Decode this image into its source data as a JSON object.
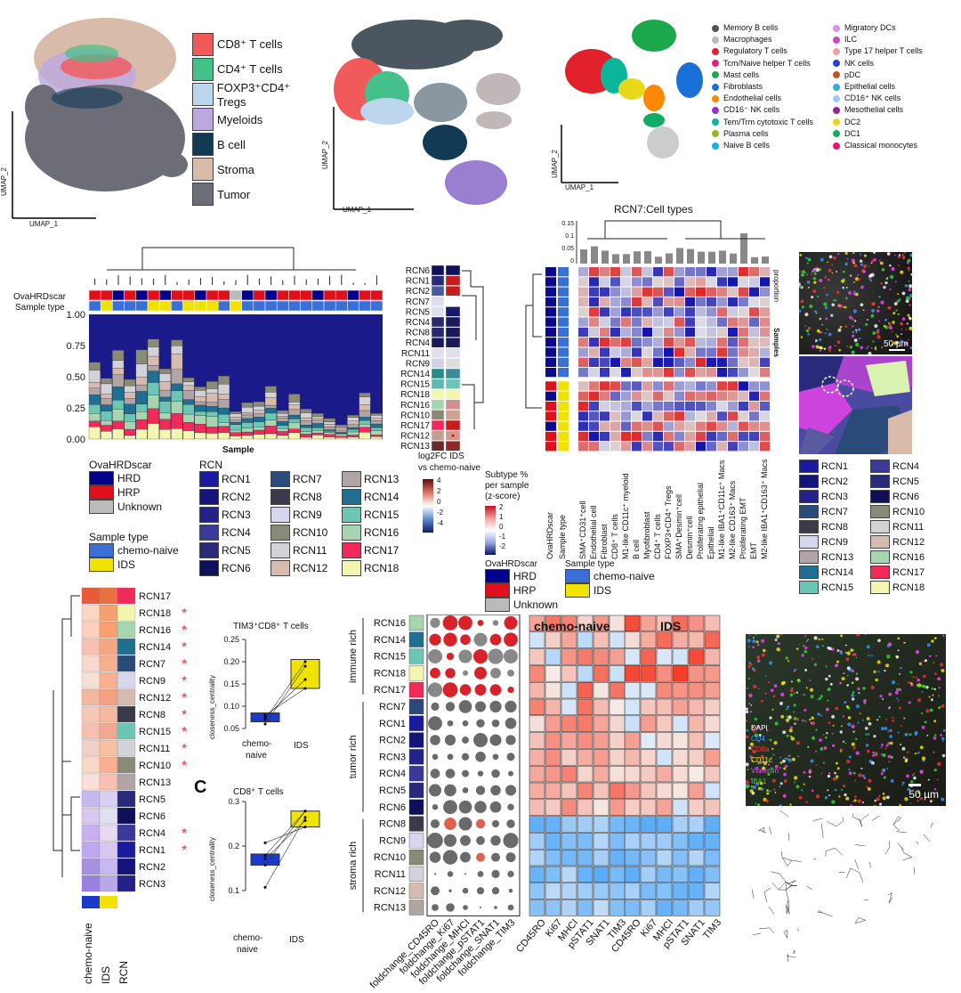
{
  "umap": {
    "ylabel": "UMAP_2",
    "xlabel": "UMAP_1"
  },
  "celltype_legend": [
    {
      "label": "CD8⁺ T cells",
      "color": "#f05a5a"
    },
    {
      "label": "CD4⁺ T cells",
      "color": "#44c08a"
    },
    {
      "label": "FOXP3⁺CD4⁺ Tregs",
      "color": "#bcd6ee"
    },
    {
      "label": "Myeloids",
      "color": "#b9a9e0"
    },
    {
      "label": "B cell",
      "color": "#123a55"
    },
    {
      "label": "Stroma",
      "color": "#d9bba9"
    },
    {
      "label": "Tumor",
      "color": "#6d6d78"
    }
  ],
  "fine_legend_col1": [
    {
      "label": "Memory B cells",
      "color": "#555555"
    },
    {
      "label": "Macrophages",
      "color": "#bbbbbb"
    },
    {
      "label": "Regulatory T cells",
      "color": "#e0202a"
    },
    {
      "label": "Tcm/Naive helper T cells",
      "color": "#e8207a"
    },
    {
      "label": "Mast cells",
      "color": "#1aa84a"
    },
    {
      "label": "Fibroblasts",
      "color": "#1b6fd8"
    },
    {
      "label": "Endothelial cells",
      "color": "#ff8800"
    },
    {
      "label": "CD16⁻ NK cells",
      "color": "#9932cc"
    },
    {
      "label": "Tem/Trm cytotoxic T cells",
      "color": "#0bb59a"
    },
    {
      "label": "Plasma cells",
      "color": "#9ab520"
    },
    {
      "label": "Naive B cells",
      "color": "#1ab0ee"
    }
  ],
  "fine_legend_col2": [
    {
      "label": "Migratory DCs",
      "color": "#d890e8"
    },
    {
      "label": "ILC",
      "color": "#cc44cc"
    },
    {
      "label": "Type 17 helper T cells",
      "color": "#f2a0a0"
    },
    {
      "label": "NK cells",
      "color": "#2244cc"
    },
    {
      "label": "pDC",
      "color": "#b85a1a"
    },
    {
      "label": "Epithelial cells",
      "color": "#33aadd"
    },
    {
      "label": "CD16⁺ NK cells",
      "color": "#a0c8f0"
    },
    {
      "label": "Mesothelial cells",
      "color": "#992288"
    },
    {
      "label": "DC2",
      "color": "#e8d81a"
    },
    {
      "label": "DC1",
      "color": "#11aa66"
    },
    {
      "label": "Classical monocytes",
      "color": "#ee1177"
    }
  ],
  "panel_b": {
    "row1_label": "OvaHRDscar",
    "row2_label": "Sample type",
    "x_label": "Sample",
    "yticks": [
      "1.00",
      "0.75",
      "0.50",
      "0.25",
      "0.00"
    ]
  },
  "ovahrd_legend": {
    "title": "OvaHRDscar",
    "items": [
      {
        "label": "HRD",
        "color": "#00008b"
      },
      {
        "label": "HRP",
        "color": "#e0101a"
      },
      {
        "label": "Unknown",
        "color": "#bbbbbb"
      }
    ]
  },
  "sampletype_legend": {
    "title": "Sample type",
    "items": [
      {
        "label": "chemo-naive",
        "color": "#3a6fd8"
      },
      {
        "label": "IDS",
        "color": "#f2e200"
      }
    ]
  },
  "rcn_legend_title": "RCN",
  "rcn_colors": [
    {
      "label": "RCN1",
      "color": "#1a1aa0"
    },
    {
      "label": "RCN2",
      "color": "#14147a"
    },
    {
      "label": "RCN3",
      "color": "#22228a"
    },
    {
      "label": "RCN4",
      "color": "#3a3a9a"
    },
    {
      "label": "RCN5",
      "color": "#2a2a7a"
    },
    {
      "label": "RCN6",
      "color": "#10105a"
    },
    {
      "label": "RCN7",
      "color": "#2a4a7a"
    },
    {
      "label": "RCN8",
      "color": "#3a3a4a"
    },
    {
      "label": "RCN9",
      "color": "#d6d6ee"
    },
    {
      "label": "RCN10",
      "color": "#8a8a78"
    },
    {
      "label": "RCN11",
      "color": "#d2d2d8"
    },
    {
      "label": "RCN12",
      "color": "#d6bcb0"
    },
    {
      "label": "RCN13",
      "color": "#b0a4a4"
    },
    {
      "label": "RCN14",
      "color": "#1e6f92"
    },
    {
      "label": "RCN15",
      "color": "#6cc6b4"
    },
    {
      "label": "RCN16",
      "color": "#a6d6b0"
    },
    {
      "label": "RCN17",
      "color": "#f22a5a"
    },
    {
      "label": "RCN18",
      "color": "#f2f6b0"
    }
  ],
  "log2fc": {
    "rows": [
      "RCN6",
      "RCN1",
      "RCN2",
      "RCN7",
      "RCN5",
      "RCN4",
      "RCN8",
      "RCN4",
      "RCN11",
      "RCN9",
      "RCN14",
      "RCN15",
      "RCN18",
      "RCN16",
      "RCN10",
      "RCN17",
      "RCN12",
      "RCN13"
    ],
    "title1": "log2FC IDS",
    "title2": "vs chemo-naive",
    "scale": [
      "4",
      "2",
      "0",
      "-2",
      "-4"
    ]
  },
  "subtype": {
    "title1": "Subtype %",
    "title2": "per sample",
    "title3": "(z-score)",
    "scale": [
      "2",
      "1",
      "0",
      "-1",
      "-2"
    ]
  },
  "rcn7": {
    "title": "RCN7:Cell types",
    "ytick": [
      "0.15",
      "0.1",
      "0.05",
      "0"
    ],
    "proportion": "proportion",
    "samples": "Samples",
    "col_left": [
      "OvaHRDscar",
      "Sample type"
    ],
    "columns": [
      "SMA⁺CD31⁺cell",
      "Endothelial cell",
      "Fibroblast",
      "CD8⁺ T cells",
      "M1-like CD11c⁺ myeloid",
      "B cell",
      "Myofibroblast",
      "CD4⁺ T cells",
      "FOXP3+CD4⁺ Tregs",
      "SMA⁺Desmin⁺cell",
      "Desmin⁺cell",
      "Proliferating epithelial",
      "Epithelial",
      "M1-like IBA1⁺CD11c⁺ Macs",
      "M2-like CD163⁺ Macs",
      "Proliferating EMT",
      "EMT",
      "M2-like IBA1⁺CD163⁺ Macs"
    ],
    "legend1_title": "OvaHRDscar",
    "legend1": [
      "HRD",
      "HRP",
      "Unknown"
    ],
    "legend2_title": "Sample type",
    "legend2": [
      "chemo-naive",
      "IDS"
    ]
  },
  "scale_bar_1": "50 µm",
  "right_rcn_legend": [
    "RCN1",
    "RCN4",
    "RCN2",
    "RCN5",
    "RCN3",
    "RCN6",
    "RCN7",
    "RCN10",
    "RCN8",
    "RCN11",
    "RCN9",
    "RCN12",
    "RCN13",
    "RCN16",
    "RCN14",
    "RCN17",
    "RCN15",
    "RCN18"
  ],
  "panel_bottom_left": {
    "rows": [
      "RCN17",
      "RCN18",
      "RCN16",
      "RCN14",
      "RCN7",
      "RCN9",
      "RCN12",
      "RCN8",
      "RCN15",
      "RCN11",
      "RCN10",
      "RCN13",
      "RCN5",
      "RCN6",
      "RCN4",
      "RCN1",
      "RCN2",
      "RCN3"
    ],
    "stars": [
      false,
      true,
      true,
      true,
      true,
      true,
      true,
      true,
      true,
      true,
      true,
      false,
      false,
      false,
      true,
      true,
      false,
      false
    ],
    "xcols": [
      "chemo-naive",
      "IDS",
      "RCN"
    ],
    "star_char": "*"
  },
  "tim3_box": {
    "title": "TIM3⁺CD8⁺ T cells",
    "ylabel": "closeness_centrality",
    "yticks": [
      "0.25",
      "0.20",
      "0.15",
      "0.10",
      "0.05"
    ],
    "x1": "chemo-",
    "x1b": "naive",
    "x2": "IDS"
  },
  "panel_c_letter": "C",
  "cd8_box": {
    "title": "CD8⁺ T cells",
    "ylabel": "closeness_centrality",
    "yticks": [
      "0.3",
      "0.2",
      "0.1"
    ],
    "x1": "chemo-",
    "x1b": "naive",
    "x2": "IDS"
  },
  "dotplot": {
    "groups": [
      "immune rich",
      "tumor rich",
      "stroma rich"
    ],
    "rows": [
      "RCN16",
      "RCN14",
      "RCN15",
      "RCN18",
      "RCN17",
      "RCN7",
      "RCN1",
      "RCN2",
      "RCN3",
      "RCN4",
      "RCN5",
      "RCN6",
      "RCN8",
      "RCN9",
      "RCN10",
      "RCN11",
      "RCN12",
      "RCN13"
    ],
    "foldcols": [
      "foldchange_CD45RO",
      "foldchange_Ki67",
      "foldchange_MHCI",
      "foldchange_pSTAT1",
      "foldchange_SNAT1",
      "foldchange_TIM3"
    ],
    "heat_title1": "chemo-naive",
    "heat_title2": "IDS",
    "heatcols": [
      "CD45RO",
      "Ki67",
      "MHCI",
      "pSTAT1",
      "SNAT1",
      "TIM3"
    ]
  },
  "fluor_legend": [
    "DAPI",
    "CD4",
    "CD8a",
    "CD11c",
    "Vimentin",
    "IBA1"
  ],
  "fluor_colors": [
    "#ffffff",
    "#3399ff",
    "#ff3333",
    "#ffee00",
    "#ff44ff",
    "#33dd33"
  ],
  "scale_bar_2": "50 µm"
}
